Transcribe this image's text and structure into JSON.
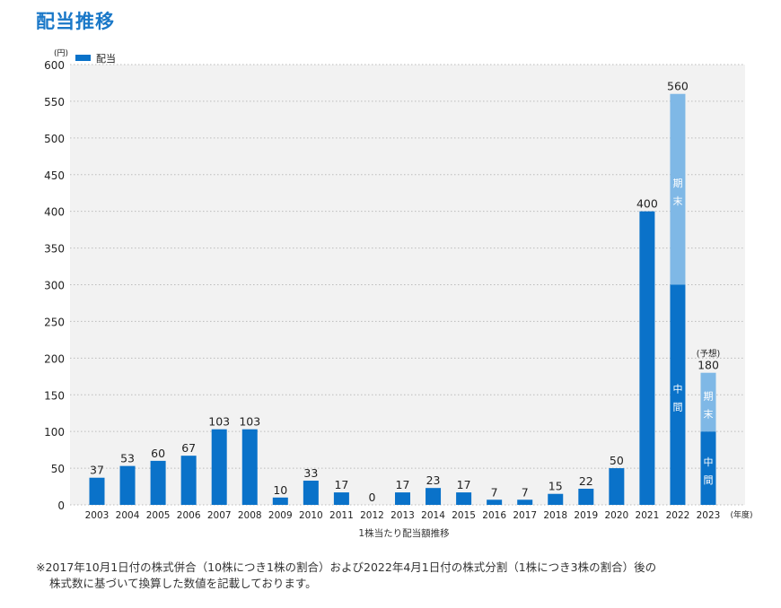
{
  "title": "配当推移",
  "chart_data": {
    "type": "bar",
    "stacked": true,
    "legend": [
      {
        "name": "配当",
        "color": "#0a72c9"
      }
    ],
    "legend_position": "top-left",
    "yunit": "(円)",
    "xunit": "(年度)",
    "xlabel": "1株当たり配当額推移",
    "ylim": [
      0,
      600
    ],
    "yticks": [
      0,
      50,
      100,
      150,
      200,
      250,
      300,
      350,
      400,
      450,
      500,
      550,
      600
    ],
    "grid": true,
    "categories": [
      "2003",
      "2004",
      "2005",
      "2006",
      "2007",
      "2008",
      "2009",
      "2010",
      "2011",
      "2012",
      "2013",
      "2014",
      "2015",
      "2016",
      "2017",
      "2018",
      "2019",
      "2020",
      "2021",
      "2022",
      "2023"
    ],
    "values": [
      37,
      53,
      60,
      67,
      103,
      103,
      10,
      33,
      17,
      0,
      17,
      23,
      17,
      7,
      7,
      15,
      22,
      50,
      400,
      560,
      180
    ],
    "split": {
      "2022": {
        "interim": 300,
        "year_end": 260
      },
      "2023": {
        "interim": 100,
        "year_end": 80
      }
    },
    "segment_labels": {
      "interim": "中間",
      "year_end": "期末"
    },
    "forecast_label": "(予想)",
    "colors": {
      "interim": "#0a72c9",
      "year_end": "#7fb8e6",
      "plot_bg": "#f2f2f2",
      "grid": "#bbbbbb"
    }
  },
  "notes": [
    "※2017年10月1日付の株式併合（10株につき1株の割合）および2022年4月1日付の株式分割（1株につき3株の割合）後の",
    "株式数に基づいて換算した数値を記載しております。"
  ]
}
